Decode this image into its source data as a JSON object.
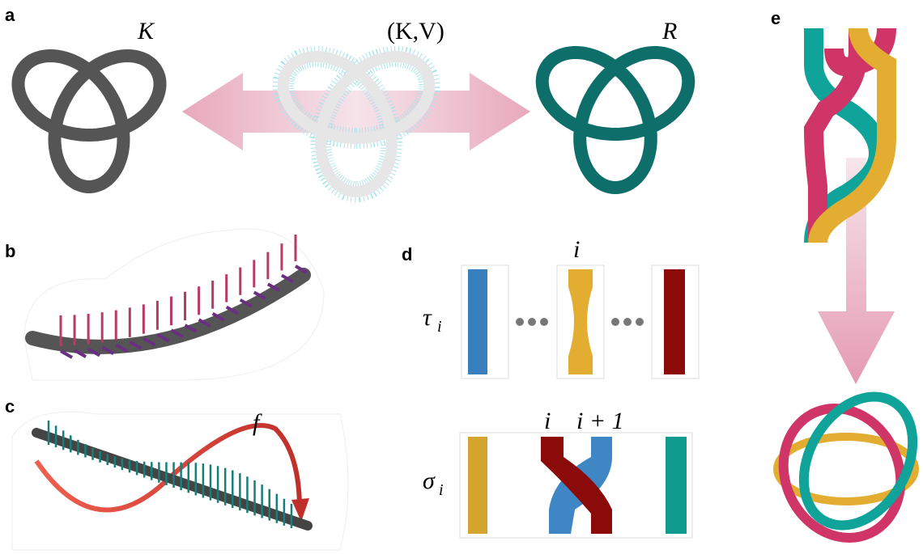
{
  "panels": {
    "a": {
      "label": "a",
      "knot": "K",
      "pair": "(K,V)",
      "ribbon": "R"
    },
    "b": {
      "label": "b"
    },
    "c": {
      "label": "c",
      "function": "f"
    },
    "d": {
      "label": "d",
      "top_index": "i",
      "tau": {
        "symbol": "τ",
        "subscript": "i"
      },
      "left_index": "i",
      "right_index": "i + 1",
      "sigma": {
        "symbol": "σ",
        "subscript": "i"
      }
    },
    "e": {
      "label": "e"
    }
  }
}
